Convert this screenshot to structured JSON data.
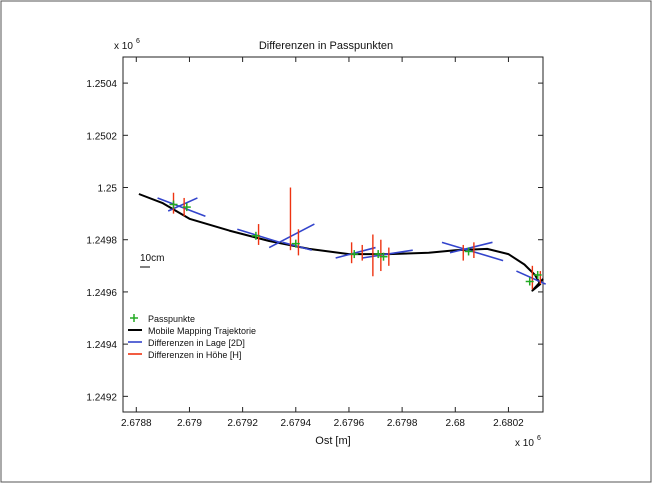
{
  "chart_data": {
    "type": "scatter",
    "title": "Differenzen in Passpunkten",
    "xlabel": "Ost [m]",
    "ylabel": "",
    "x_multiplier_label": "x 10",
    "x_multiplier_exp": "6",
    "y_multiplier_label": "x 10",
    "y_multiplier_exp": "6",
    "xlim": [
      2.67875,
      2.68033
    ],
    "ylim": [
      1.24914,
      1.2505
    ],
    "xticks": [
      2.6788,
      2.679,
      2.6792,
      2.6794,
      2.6796,
      2.6798,
      2.68,
      2.6802
    ],
    "xtick_labels": [
      "2.6788",
      "2.679",
      "2.6792",
      "2.6794",
      "2.6796",
      "2.6798",
      "2.68",
      "2.6802"
    ],
    "yticks": [
      1.2492,
      1.2494,
      1.2496,
      1.2498,
      1.25,
      1.2502,
      1.2504
    ],
    "ytick_labels": [
      "1.2492",
      "1.2494",
      "1.2496",
      "1.2498",
      "1.25",
      "1.2502",
      "1.2504"
    ],
    "grid": false,
    "scale_bar_label": "10cm",
    "legend_position": "lower-left",
    "legend": [
      {
        "label": "Passpunkte",
        "color": "#22aa22",
        "marker": "plus"
      },
      {
        "label": "Mobile Mapping Trajektorie",
        "color": "#000000",
        "marker": "line"
      },
      {
        "label": "Differenzen in Lage [2D]",
        "color": "#3344cc",
        "marker": "line"
      },
      {
        "label": "Differenzen in Höhe [H]",
        "color": "#ee3311",
        "marker": "line"
      }
    ],
    "trajectory": {
      "name": "Mobile Mapping Trajektorie",
      "color": "#000000",
      "x": [
        2.67881,
        2.6789,
        2.679,
        2.67915,
        2.6793,
        2.67945,
        2.6796,
        2.67975,
        2.6799,
        2.68,
        2.68012,
        2.6802,
        2.68026,
        2.6803,
        2.68032,
        2.68029,
        2.68033
      ],
      "y": [
        1.249975,
        1.24994,
        1.24988,
        1.249835,
        1.249795,
        1.249765,
        1.249745,
        1.249745,
        1.24975,
        1.24976,
        1.249765,
        1.249745,
        1.249705,
        1.249665,
        1.24963,
        1.249605,
        1.24965
      ]
    },
    "passpunkte": {
      "name": "Passpunkte",
      "color": "#22aa22",
      "x": [
        2.67894,
        2.67899,
        2.67925,
        2.6794,
        2.67962,
        2.67971,
        2.67973,
        2.68005,
        2.68031,
        2.68028
      ],
      "y": [
        1.249935,
        1.249925,
        1.249815,
        1.249785,
        1.249745,
        1.249745,
        1.249735,
        1.249755,
        1.249665,
        1.24964
      ]
    },
    "lage_diff": {
      "name": "Differenzen in Lage [2D]",
      "color": "#3344cc",
      "segments": [
        [
          2.67888,
          1.24996,
          2.67906,
          1.24989
        ],
        [
          2.67892,
          1.24991,
          2.67903,
          1.24996
        ],
        [
          2.67918,
          1.24984,
          2.67934,
          1.24979
        ],
        [
          2.6793,
          1.24977,
          2.67947,
          1.24986
        ],
        [
          2.67935,
          1.24979,
          2.67946,
          1.24976
        ],
        [
          2.67955,
          1.24973,
          2.6797,
          1.24977
        ],
        [
          2.67965,
          1.24973,
          2.67984,
          1.24976
        ],
        [
          2.67995,
          1.24979,
          2.68018,
          1.24972
        ],
        [
          2.67998,
          1.24975,
          2.68014,
          1.24979
        ],
        [
          2.68023,
          1.24968,
          2.68034,
          1.24963
        ]
      ]
    },
    "hoehe_diff": {
      "name": "Differenzen in Höhe [H]",
      "color": "#ee3311",
      "segments": [
        [
          2.67894,
          1.2499,
          2.67894,
          1.24998
        ],
        [
          2.67898,
          1.24989,
          2.67898,
          1.24996
        ],
        [
          2.67926,
          1.24978,
          2.67926,
          1.24986
        ],
        [
          2.67938,
          1.24976,
          2.67938,
          1.25
        ],
        [
          2.67941,
          1.24974,
          2.67941,
          1.24984
        ],
        [
          2.67961,
          1.24971,
          2.67961,
          1.24979
        ],
        [
          2.67965,
          1.24972,
          2.67965,
          1.24978
        ],
        [
          2.67969,
          1.24966,
          2.67969,
          1.24982
        ],
        [
          2.67972,
          1.24968,
          2.67972,
          1.2498
        ],
        [
          2.67975,
          1.2497,
          2.67975,
          1.24977
        ],
        [
          2.68003,
          1.24972,
          2.68003,
          1.24978
        ],
        [
          2.68007,
          1.24973,
          2.68007,
          1.24979
        ],
        [
          2.68029,
          1.24961,
          2.68029,
          1.2497
        ],
        [
          2.68032,
          1.24963,
          2.68032,
          1.24968
        ]
      ]
    }
  }
}
